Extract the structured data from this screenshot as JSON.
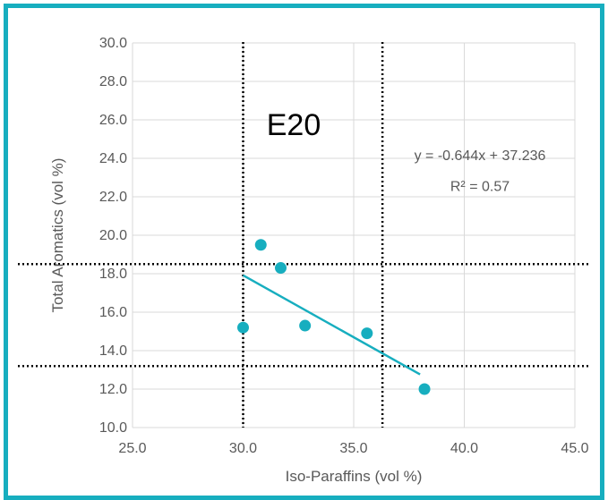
{
  "colors": {
    "frame": "#17aebf",
    "marker": "#17aebf",
    "trendline": "#17aebf",
    "grid": "#d9d9d9",
    "reference_line": "#000000",
    "text": "#595959"
  },
  "chart_data": {
    "type": "scatter",
    "title": "",
    "annotation_label": "E20",
    "xlabel": "Iso-Paraffins (vol %)",
    "ylabel": "Total Aromatics (vol %)",
    "xlim": [
      25.0,
      45.0
    ],
    "ylim": [
      10.0,
      30.0
    ],
    "xticks": [
      "25.0",
      "30.0",
      "35.0",
      "40.0",
      "45.0"
    ],
    "yticks": [
      "10.0",
      "12.0",
      "14.0",
      "16.0",
      "18.0",
      "20.0",
      "22.0",
      "24.0",
      "26.0",
      "28.0",
      "30.0"
    ],
    "grid": true,
    "legend": "none",
    "series": [
      {
        "x": [
          30.0,
          30.8,
          31.7,
          32.8,
          35.6,
          38.2
        ],
        "y": [
          15.2,
          19.5,
          18.3,
          15.3,
          14.9,
          12.0
        ]
      }
    ],
    "trendline": {
      "equation": "y = -0.644x + 37.236",
      "r_squared": "R² = 0.57",
      "x_range": [
        30.0,
        38.0
      ]
    },
    "reference_lines": {
      "vertical_x": [
        30.0,
        36.3
      ],
      "horizontal_y": [
        18.5,
        13.2
      ]
    }
  }
}
